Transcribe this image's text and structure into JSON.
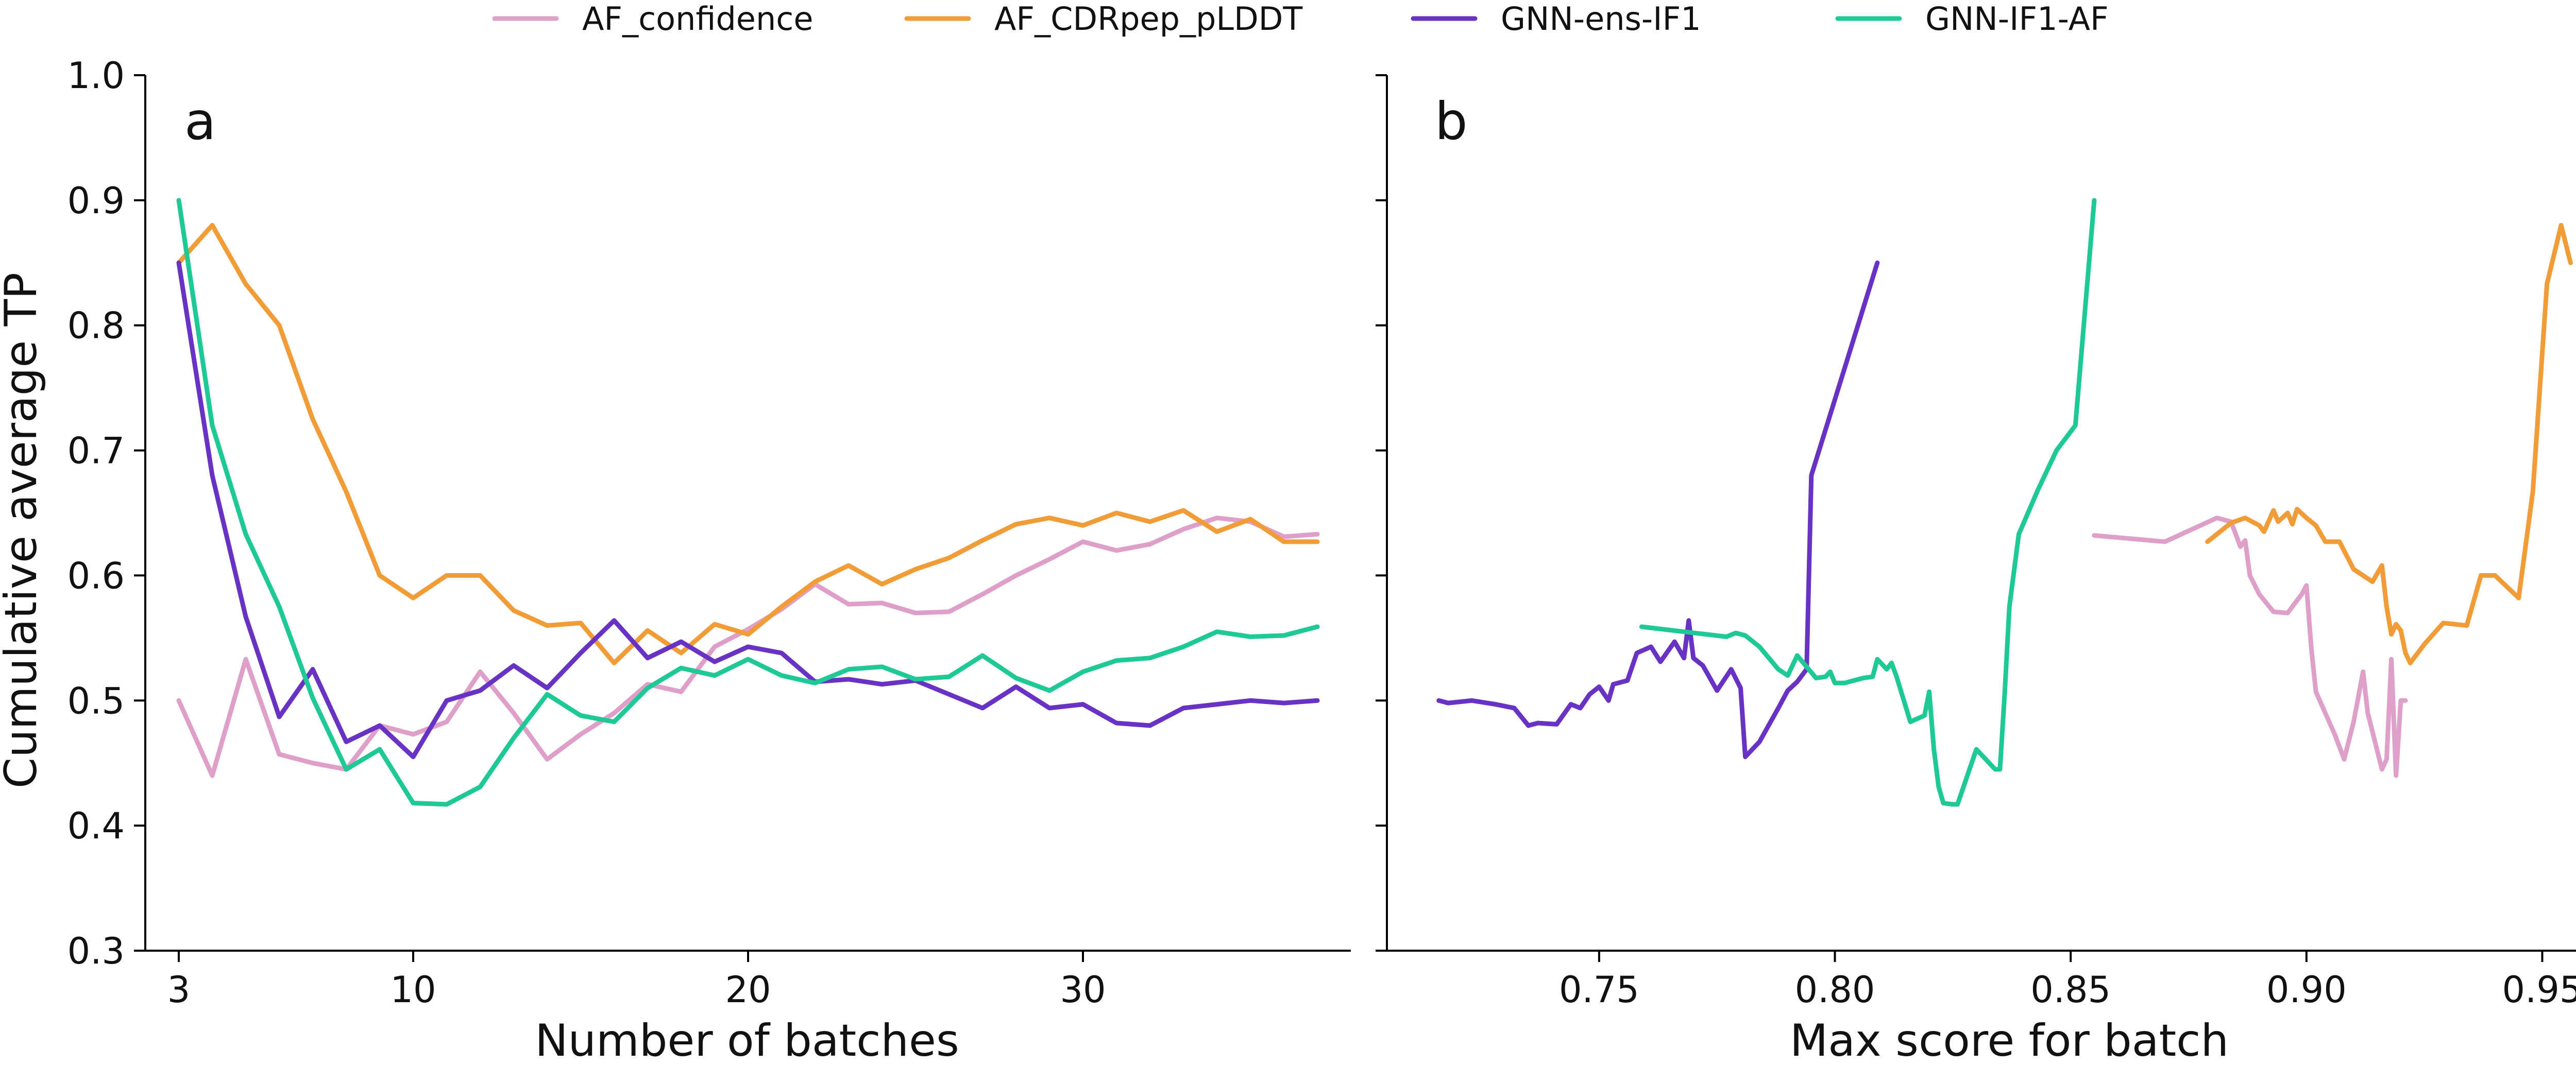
{
  "legend": {
    "position": "top-center",
    "items": [
      {
        "label": "AF_confidence",
        "color": "#de9fc8"
      },
      {
        "label": "AF_CDRpep_pLDDT",
        "color": "#f29c38"
      },
      {
        "label": "GNN-ens-IF1",
        "color": "#6833c4"
      },
      {
        "label": "GNN-IF1-AF",
        "color": "#1fc995"
      }
    ]
  },
  "chart_data": [
    {
      "type": "line",
      "panel": "a",
      "xlabel": "Number of batches",
      "ylabel": "Cumulative average TP",
      "xlim": [
        2,
        38
      ],
      "ylim": [
        0.3,
        1.0
      ],
      "xticks": [
        3,
        10,
        20,
        30
      ],
      "yticks": [
        0.3,
        0.4,
        0.5,
        0.6,
        0.7,
        0.8,
        0.9,
        1.0
      ],
      "ytick_labels": [
        "0.3",
        "0.4",
        "0.5",
        "0.6",
        "0.7",
        "0.8",
        "0.9",
        "1.0"
      ],
      "grid": false,
      "series": [
        {
          "name": "AF_confidence",
          "color": "#de9fc8",
          "x": [
            3,
            4,
            5,
            6,
            7,
            8,
            9,
            10,
            11,
            12,
            13,
            14,
            15,
            16,
            17,
            18,
            19,
            20,
            21,
            22,
            23,
            24,
            25,
            26,
            27,
            28,
            29,
            30,
            31,
            32,
            33,
            34,
            35,
            36,
            37
          ],
          "y": [
            0.5,
            0.44,
            0.533,
            0.457,
            0.45,
            0.445,
            0.48,
            0.473,
            0.483,
            0.523,
            0.49,
            0.453,
            0.473,
            0.49,
            0.513,
            0.507,
            0.543,
            0.557,
            0.573,
            0.593,
            0.577,
            0.578,
            0.57,
            0.571,
            0.585,
            0.6,
            0.613,
            0.627,
            0.62,
            0.625,
            0.637,
            0.646,
            0.643,
            0.631,
            0.633
          ]
        },
        {
          "name": "AF_CDRpep_pLDDT",
          "color": "#f29c38",
          "x": [
            3,
            4,
            5,
            6,
            7,
            8,
            9,
            10,
            11,
            12,
            13,
            14,
            15,
            16,
            17,
            18,
            19,
            20,
            21,
            22,
            23,
            24,
            25,
            26,
            27,
            28,
            29,
            30,
            31,
            32,
            33,
            34,
            35,
            36,
            37
          ],
          "y": [
            0.85,
            0.88,
            0.833,
            0.8,
            0.725,
            0.667,
            0.6,
            0.582,
            0.6,
            0.6,
            0.572,
            0.56,
            0.562,
            0.53,
            0.556,
            0.538,
            0.561,
            0.553,
            0.575,
            0.595,
            0.608,
            0.593,
            0.605,
            0.614,
            0.628,
            0.641,
            0.646,
            0.64,
            0.65,
            0.643,
            0.652,
            0.635,
            0.645,
            0.627,
            0.627
          ]
        },
        {
          "name": "GNN-ens-IF1",
          "color": "#6833c4",
          "x": [
            3,
            4,
            5,
            6,
            7,
            8,
            9,
            10,
            11,
            12,
            13,
            14,
            15,
            16,
            17,
            18,
            19,
            20,
            21,
            22,
            23,
            24,
            25,
            26,
            27,
            28,
            29,
            30,
            31,
            32,
            33,
            34,
            35,
            36,
            37
          ],
          "y": [
            0.85,
            0.68,
            0.567,
            0.487,
            0.525,
            0.467,
            0.48,
            0.455,
            0.5,
            0.508,
            0.528,
            0.51,
            0.538,
            0.564,
            0.534,
            0.547,
            0.531,
            0.543,
            0.538,
            0.515,
            0.517,
            0.513,
            0.516,
            0.505,
            0.494,
            0.511,
            0.494,
            0.497,
            0.482,
            0.48,
            0.494,
            0.497,
            0.5,
            0.498,
            0.5
          ]
        },
        {
          "name": "GNN-IF1-AF",
          "color": "#1fc995",
          "x": [
            3,
            4,
            5,
            6,
            7,
            8,
            9,
            10,
            11,
            12,
            13,
            14,
            15,
            16,
            17,
            18,
            19,
            20,
            21,
            22,
            23,
            24,
            25,
            26,
            27,
            28,
            29,
            30,
            31,
            32,
            33,
            34,
            35,
            36,
            37
          ],
          "y": [
            0.9,
            0.72,
            0.633,
            0.575,
            0.502,
            0.445,
            0.461,
            0.418,
            0.417,
            0.431,
            0.47,
            0.505,
            0.488,
            0.483,
            0.51,
            0.526,
            0.52,
            0.533,
            0.52,
            0.514,
            0.525,
            0.527,
            0.517,
            0.519,
            0.536,
            0.518,
            0.508,
            0.523,
            0.532,
            0.534,
            0.543,
            0.555,
            0.551,
            0.552,
            0.559
          ]
        }
      ]
    },
    {
      "type": "line",
      "panel": "b",
      "xlabel": "Max score for batch",
      "ylabel": "",
      "xlim": [
        0.705,
        0.96
      ],
      "ylim": [
        0.3,
        1.0
      ],
      "xticks": [
        0.75,
        0.8,
        0.85,
        0.9,
        0.95
      ],
      "xtick_labels": [
        "0.75",
        "0.80",
        "0.85",
        "0.90",
        "0.95"
      ],
      "yticks": [
        0.3,
        0.4,
        0.5,
        0.6,
        0.7,
        0.8,
        0.9,
        1.0
      ],
      "grid": false,
      "series": [
        {
          "name": "AF_confidence",
          "color": "#de9fc8",
          "x": [
            0.855,
            0.87,
            0.881,
            0.884,
            0.886,
            0.887,
            0.888,
            0.89,
            0.893,
            0.896,
            0.899,
            0.9,
            0.901,
            0.902,
            0.904,
            0.906,
            0.908,
            0.91,
            0.912,
            0.913,
            0.916,
            0.917,
            0.918,
            0.919,
            0.92,
            0.921
          ],
          "y": [
            0.632,
            0.627,
            0.646,
            0.643,
            0.623,
            0.628,
            0.6,
            0.585,
            0.571,
            0.57,
            0.585,
            0.592,
            0.543,
            0.507,
            0.49,
            0.473,
            0.453,
            0.483,
            0.523,
            0.49,
            0.445,
            0.453,
            0.533,
            0.44,
            0.5,
            0.5
          ]
        },
        {
          "name": "AF_CDRpep_pLDDT",
          "color": "#f29c38",
          "x": [
            0.879,
            0.884,
            0.887,
            0.89,
            0.891,
            0.893,
            0.894,
            0.896,
            0.897,
            0.898,
            0.9,
            0.902,
            0.904,
            0.907,
            0.91,
            0.914,
            0.916,
            0.917,
            0.918,
            0.919,
            0.92,
            0.921,
            0.922,
            0.925,
            0.929,
            0.934,
            0.937,
            0.94,
            0.945,
            0.948,
            0.951,
            0.954,
            0.956
          ],
          "y": [
            0.627,
            0.642,
            0.646,
            0.64,
            0.635,
            0.652,
            0.643,
            0.65,
            0.641,
            0.653,
            0.646,
            0.64,
            0.627,
            0.627,
            0.605,
            0.595,
            0.608,
            0.575,
            0.553,
            0.561,
            0.556,
            0.538,
            0.53,
            0.545,
            0.562,
            0.56,
            0.6,
            0.6,
            0.582,
            0.667,
            0.833,
            0.88,
            0.85
          ]
        },
        {
          "name": "GNN-ens-IF1",
          "color": "#6833c4",
          "x": [
            0.716,
            0.718,
            0.723,
            0.728,
            0.732,
            0.735,
            0.737,
            0.741,
            0.744,
            0.746,
            0.748,
            0.75,
            0.752,
            0.753,
            0.756,
            0.758,
            0.761,
            0.763,
            0.766,
            0.768,
            0.769,
            0.77,
            0.772,
            0.775,
            0.778,
            0.78,
            0.781,
            0.784,
            0.788,
            0.79,
            0.792,
            0.794,
            0.795,
            0.809
          ],
          "y": [
            0.5,
            0.498,
            0.5,
            0.497,
            0.494,
            0.48,
            0.482,
            0.481,
            0.497,
            0.494,
            0.505,
            0.511,
            0.5,
            0.513,
            0.516,
            0.538,
            0.543,
            0.531,
            0.547,
            0.534,
            0.564,
            0.534,
            0.528,
            0.508,
            0.525,
            0.51,
            0.455,
            0.467,
            0.494,
            0.508,
            0.515,
            0.525,
            0.68,
            0.85
          ]
        },
        {
          "name": "GNN-IF1-AF",
          "color": "#1fc995",
          "x": [
            0.759,
            0.768,
            0.777,
            0.779,
            0.781,
            0.784,
            0.786,
            0.788,
            0.79,
            0.792,
            0.794,
            0.796,
            0.798,
            0.799,
            0.8,
            0.802,
            0.806,
            0.808,
            0.809,
            0.811,
            0.812,
            0.813,
            0.816,
            0.819,
            0.82,
            0.821,
            0.822,
            0.823,
            0.825,
            0.826,
            0.83,
            0.834,
            0.835,
            0.836,
            0.837,
            0.839,
            0.843,
            0.847,
            0.851,
            0.855
          ],
          "y": [
            0.559,
            0.555,
            0.551,
            0.554,
            0.552,
            0.543,
            0.534,
            0.525,
            0.52,
            0.536,
            0.527,
            0.518,
            0.519,
            0.523,
            0.514,
            0.514,
            0.518,
            0.519,
            0.533,
            0.525,
            0.53,
            0.52,
            0.483,
            0.488,
            0.507,
            0.461,
            0.431,
            0.418,
            0.417,
            0.417,
            0.461,
            0.445,
            0.445,
            0.505,
            0.575,
            0.633,
            0.668,
            0.7,
            0.72,
            0.9
          ]
        }
      ]
    }
  ]
}
